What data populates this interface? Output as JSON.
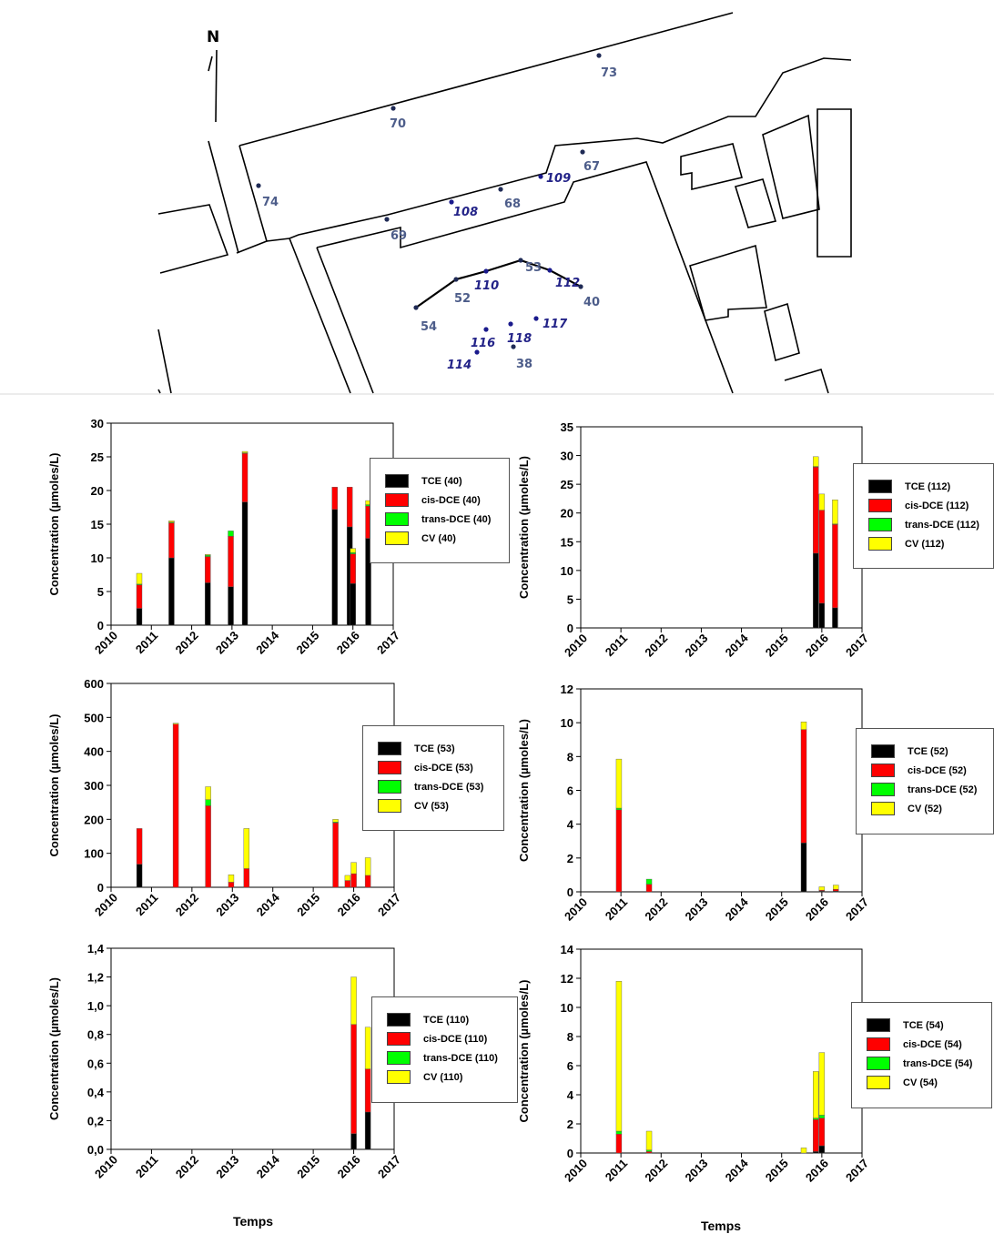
{
  "map": {
    "north_label": "N",
    "wells_plain": [
      {
        "label": "73"
      },
      {
        "label": "70"
      },
      {
        "label": "67"
      },
      {
        "label": "74"
      },
      {
        "label": "68"
      },
      {
        "label": "69"
      },
      {
        "label": "53"
      },
      {
        "label": "52"
      },
      {
        "label": "40"
      },
      {
        "label": "54"
      },
      {
        "label": "38"
      }
    ],
    "wells_new": [
      {
        "label": "109"
      },
      {
        "label": "108"
      },
      {
        "label": "110"
      },
      {
        "label": "112"
      },
      {
        "label": "117"
      },
      {
        "label": "116"
      },
      {
        "label": "118"
      },
      {
        "label": "114"
      }
    ]
  },
  "colors": {
    "TCE": "#000000",
    "cis-DCE": "#ff0000",
    "trans-DCE": "#00ff00",
    "CV": "#ffff00"
  },
  "x_axis_title": "Temps",
  "chart_data": [
    {
      "type": "bar",
      "stacked": true,
      "well": "40",
      "ylabel": "Concentration (µmoles/L)",
      "xlabel": "Temps",
      "xlim": [
        2010,
        2017
      ],
      "ylim": [
        0,
        30
      ],
      "yticks": [
        "0",
        "5",
        "10",
        "15",
        "20",
        "25",
        "30"
      ],
      "xticks": [
        "2010",
        "2011",
        "2012",
        "2013",
        "2014",
        "2015",
        "2016",
        "2017"
      ],
      "legend": [
        "TCE (40)",
        "cis-DCE (40)",
        "trans-DCE (40)",
        "CV (40)"
      ],
      "legend_placement": "right",
      "x": [
        2010.7,
        2011.5,
        2012.4,
        2012.97,
        2013.32,
        2015.55,
        2015.92,
        2016.0,
        2016.38
      ],
      "series": [
        {
          "name": "TCE (40)",
          "values": [
            2.5,
            10.0,
            6.3,
            5.7,
            18.3,
            17.2,
            14.6,
            6.2,
            12.9
          ]
        },
        {
          "name": "cis-DCE (40)",
          "values": [
            3.5,
            5.2,
            3.9,
            7.5,
            7.2,
            3.3,
            5.9,
            4.4,
            4.8
          ]
        },
        {
          "name": "trans-DCE (40)",
          "values": [
            0.1,
            0.1,
            0.2,
            0.8,
            0.1,
            0.0,
            0.0,
            0.2,
            0.2
          ]
        },
        {
          "name": "CV (40)",
          "values": [
            1.6,
            0.2,
            0.1,
            0.0,
            0.2,
            0.0,
            0.0,
            0.6,
            0.6
          ]
        }
      ]
    },
    {
      "type": "bar",
      "stacked": true,
      "well": "112",
      "ylabel": "Concentration (µmoles/L)",
      "xlabel": "Temps",
      "xlim": [
        2010,
        2017
      ],
      "ylim": [
        0,
        35
      ],
      "yticks": [
        "0",
        "5",
        "10",
        "15",
        "20",
        "25",
        "30",
        "35"
      ],
      "xticks": [
        "2010",
        "2011",
        "2012",
        "2013",
        "2014",
        "2015",
        "2016",
        "2017"
      ],
      "legend": [
        "TCE (112)",
        "cis-DCE (112)",
        "trans-DCE (112)",
        "CV (112)"
      ],
      "legend_placement": "right",
      "x": [
        2015.85,
        2016.0,
        2016.33
      ],
      "series": [
        {
          "name": "TCE (112)",
          "values": [
            13.0,
            4.3,
            3.5
          ]
        },
        {
          "name": "cis-DCE (112)",
          "values": [
            15.0,
            16.2,
            14.5
          ]
        },
        {
          "name": "trans-DCE (112)",
          "values": [
            0.1,
            0.0,
            0.1
          ]
        },
        {
          "name": "CV (112)",
          "values": [
            1.7,
            2.8,
            4.2
          ]
        }
      ]
    },
    {
      "type": "bar",
      "stacked": true,
      "well": "53",
      "ylabel": "Concentration (µmoles/L)",
      "xlabel": "Temps",
      "xlim": [
        2010,
        2017
      ],
      "ylim": [
        0,
        600
      ],
      "yticks": [
        "0",
        "100",
        "200",
        "300",
        "400",
        "500",
        "600"
      ],
      "xticks": [
        "2010",
        "2011",
        "2012",
        "2013",
        "2014",
        "2015",
        "2016",
        "2017"
      ],
      "legend": [
        "TCE (53)",
        "cis-DCE (53)",
        "trans-DCE (53)",
        "CV (53)"
      ],
      "legend_placement": "right",
      "x": [
        2010.7,
        2011.6,
        2012.4,
        2012.97,
        2013.35,
        2015.55,
        2015.85,
        2016.0,
        2016.35
      ],
      "series": [
        {
          "name": "TCE (53)",
          "values": [
            68,
            0,
            0,
            0,
            0,
            0,
            0,
            0,
            0
          ]
        },
        {
          "name": "cis-DCE (53)",
          "values": [
            105,
            480,
            240,
            15,
            55,
            190,
            20,
            40,
            35
          ]
        },
        {
          "name": "trans-DCE (53)",
          "values": [
            0,
            0,
            18,
            0,
            0,
            2,
            0,
            0,
            0
          ]
        },
        {
          "name": "CV (53)",
          "values": [
            0,
            3,
            38,
            22,
            118,
            8,
            15,
            33,
            52
          ]
        }
      ]
    },
    {
      "type": "bar",
      "stacked": true,
      "well": "52",
      "ylabel": "Concentration (µmoles/L)",
      "xlabel": "Temps",
      "xlim": [
        2010,
        2017
      ],
      "ylim": [
        0,
        12
      ],
      "yticks": [
        "0",
        "2",
        "4",
        "6",
        "8",
        "10",
        "12"
      ],
      "xticks": [
        "2010",
        "2011",
        "2012",
        "2013",
        "2014",
        "2015",
        "2016",
        "2017"
      ],
      "legend": [
        "TCE (52)",
        "cis-DCE (52)",
        "trans-DCE (52)",
        "CV (52)"
      ],
      "legend_placement": "right",
      "x": [
        2010.95,
        2011.7,
        2015.55,
        2016.0,
        2016.35
      ],
      "series": [
        {
          "name": "TCE (52)",
          "values": [
            0,
            0,
            2.9,
            0.05,
            0.05
          ]
        },
        {
          "name": "cis-DCE (52)",
          "values": [
            4.85,
            0.45,
            6.7,
            0.05,
            0.1
          ]
        },
        {
          "name": "trans-DCE (52)",
          "values": [
            0.1,
            0.3,
            0.0,
            0.0,
            0.0
          ]
        },
        {
          "name": "CV (52)",
          "values": [
            2.9,
            0.0,
            0.45,
            0.2,
            0.25
          ]
        }
      ]
    },
    {
      "type": "bar",
      "stacked": true,
      "well": "110",
      "ylabel": "Concentration (µmoles/L)",
      "xlabel": "Temps",
      "xlim": [
        2010,
        2017
      ],
      "ylim": [
        0,
        1.4
      ],
      "yticks": [
        "0,0",
        "0,2",
        "0,4",
        "0,6",
        "0,8",
        "1,0",
        "1,2",
        "1,4"
      ],
      "xticks": [
        "2010",
        "2011",
        "2012",
        "2013",
        "2014",
        "2015",
        "2016",
        "2017"
      ],
      "legend": [
        "TCE (110)",
        "cis-DCE (110)",
        "trans-DCE (110)",
        "CV (110)"
      ],
      "legend_placement": "right",
      "x": [
        2016.0,
        2016.35
      ],
      "series": [
        {
          "name": "TCE (110)",
          "values": [
            0.11,
            0.26
          ]
        },
        {
          "name": "cis-DCE (110)",
          "values": [
            0.76,
            0.3
          ]
        },
        {
          "name": "trans-DCE (110)",
          "values": [
            0.0,
            0.0
          ]
        },
        {
          "name": "CV (110)",
          "values": [
            0.33,
            0.29
          ]
        }
      ]
    },
    {
      "type": "bar",
      "stacked": true,
      "well": "54",
      "ylabel": "Concentration (µmoles/L)",
      "xlabel": "Temps",
      "xlim": [
        2010,
        2017
      ],
      "ylim": [
        0,
        14
      ],
      "yticks": [
        "0",
        "2",
        "4",
        "6",
        "8",
        "10",
        "12",
        "14"
      ],
      "xticks": [
        "2010",
        "2011",
        "2012",
        "2013",
        "2014",
        "2015",
        "2016",
        "2017"
      ],
      "legend": [
        "TCE (54)",
        "cis-DCE (54)",
        "trans-DCE (54)",
        "CV (54)"
      ],
      "legend_placement": "right",
      "x": [
        2010.95,
        2011.7,
        2015.55,
        2015.85,
        2016.0
      ],
      "series": [
        {
          "name": "TCE (54)",
          "values": [
            0.0,
            0.0,
            0.0,
            0.1,
            0.5
          ]
        },
        {
          "name": "cis-DCE (54)",
          "values": [
            1.3,
            0.1,
            0.0,
            2.2,
            1.9
          ]
        },
        {
          "name": "trans-DCE (54)",
          "values": [
            0.2,
            0.1,
            0.0,
            0.1,
            0.2
          ]
        },
        {
          "name": "CV (54)",
          "values": [
            10.3,
            1.3,
            0.35,
            3.2,
            4.3
          ]
        }
      ]
    }
  ]
}
